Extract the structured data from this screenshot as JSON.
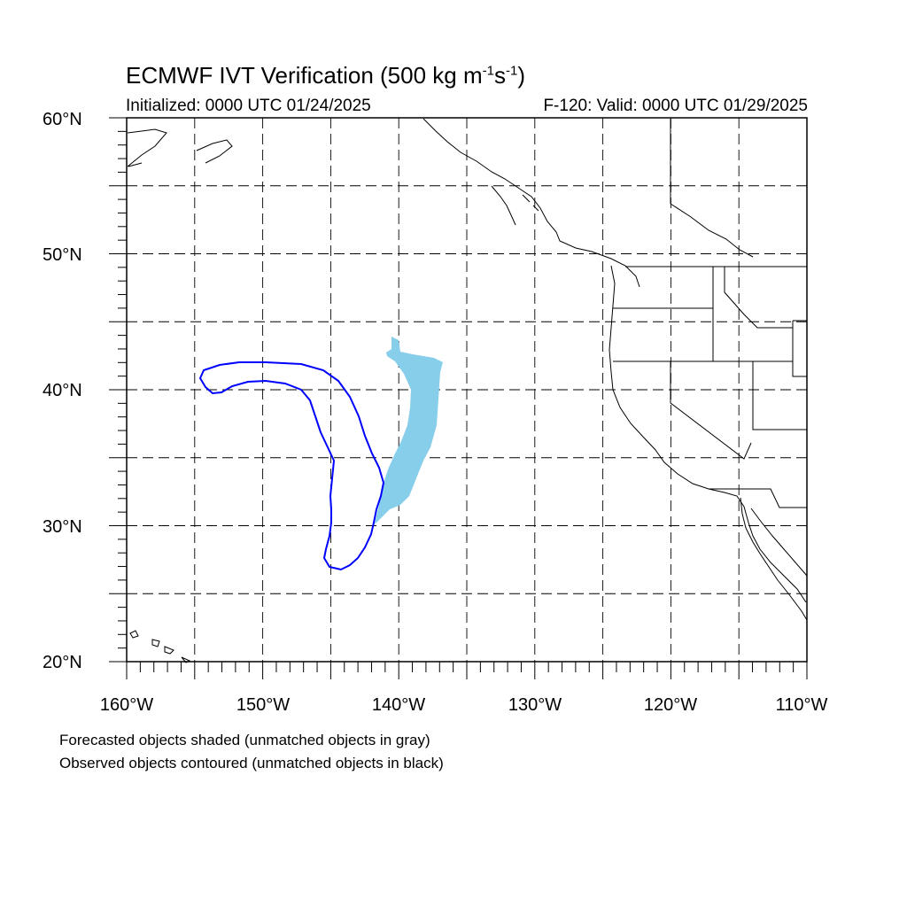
{
  "title": {
    "main": "ECMWF IVT Verification (500 kg m",
    "exp1": "-1",
    "mid": "s",
    "exp2": "-1",
    "end": ")"
  },
  "initialized": "Initialized: 0000 UTC 01/24/2025",
  "valid": "F-120: Valid: 0000 UTC 01/29/2025",
  "lat_labels": [
    "60°N",
    "50°N",
    "40°N",
    "30°N",
    "20°N"
  ],
  "lon_labels": [
    "160°W",
    "150°W",
    "140°W",
    "130°W",
    "120°W",
    "110°W"
  ],
  "notes": [
    "Forecasted objects shaded (unmatched objects in gray)",
    "Observed objects contoured (unmatched objects in black)"
  ],
  "map": {
    "lon_range": [
      -160,
      -110
    ],
    "lat_range": [
      20,
      60
    ],
    "grid_spacing_deg": 5,
    "forecast_color": "#87ceeb",
    "observed_color": "#0000ff",
    "coast_color": "#000000"
  }
}
